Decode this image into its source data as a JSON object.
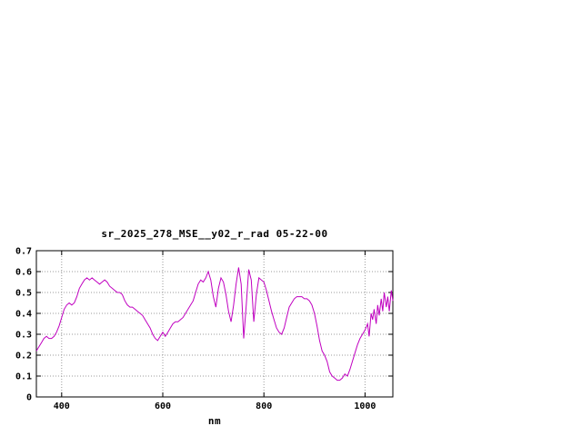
{
  "chart_data": {
    "type": "line",
    "title": "sr_2025_278_MSE__y02_r_rad 05-22-00",
    "xlabel": "nm",
    "ylabel": "",
    "xlim": [
      350,
      1055
    ],
    "ylim": [
      0,
      0.7
    ],
    "grid": true,
    "legend": "none",
    "x_tick_labels": [
      "400",
      "600",
      "800",
      "1000"
    ],
    "y_tick_labels": [
      "0",
      "0.1",
      "0.2",
      "0.3",
      "0.4",
      "0.5",
      "0.6",
      "0.7"
    ],
    "line_color": "#c000c0",
    "grid_color": "#9b9b9b",
    "axis_color": "#000000",
    "series": [
      {
        "name": "sr_2025_278_MSE__y02_r_rad 05-22-00",
        "x": [
          350,
          355,
          360,
          365,
          370,
          375,
          380,
          385,
          390,
          395,
          400,
          405,
          410,
          415,
          420,
          425,
          430,
          435,
          440,
          445,
          450,
          455,
          460,
          465,
          470,
          475,
          480,
          485,
          490,
          495,
          500,
          505,
          510,
          515,
          520,
          525,
          530,
          535,
          540,
          545,
          550,
          555,
          560,
          565,
          570,
          575,
          580,
          585,
          590,
          595,
          600,
          605,
          610,
          615,
          620,
          625,
          630,
          635,
          640,
          645,
          650,
          655,
          660,
          665,
          670,
          675,
          680,
          685,
          690,
          695,
          700,
          705,
          710,
          715,
          720,
          725,
          730,
          735,
          740,
          745,
          750,
          755,
          760,
          765,
          770,
          775,
          780,
          785,
          790,
          795,
          800,
          805,
          810,
          815,
          820,
          825,
          830,
          835,
          840,
          845,
          850,
          855,
          860,
          865,
          870,
          875,
          880,
          885,
          890,
          895,
          900,
          905,
          910,
          915,
          920,
          925,
          930,
          935,
          940,
          945,
          950,
          955,
          960,
          965,
          970,
          975,
          980,
          985,
          990,
          995,
          1000,
          1005,
          1008,
          1012,
          1015,
          1018,
          1022,
          1025,
          1028,
          1032,
          1035,
          1038,
          1042,
          1045,
          1048,
          1052,
          1055
        ],
        "y": [
          0.22,
          0.24,
          0.26,
          0.28,
          0.29,
          0.28,
          0.28,
          0.29,
          0.31,
          0.34,
          0.38,
          0.42,
          0.44,
          0.45,
          0.44,
          0.45,
          0.48,
          0.52,
          0.54,
          0.56,
          0.57,
          0.56,
          0.57,
          0.56,
          0.55,
          0.54,
          0.55,
          0.56,
          0.55,
          0.53,
          0.52,
          0.51,
          0.5,
          0.5,
          0.49,
          0.46,
          0.44,
          0.43,
          0.43,
          0.42,
          0.41,
          0.4,
          0.39,
          0.37,
          0.35,
          0.33,
          0.3,
          0.28,
          0.27,
          0.29,
          0.31,
          0.29,
          0.31,
          0.33,
          0.35,
          0.36,
          0.36,
          0.37,
          0.38,
          0.4,
          0.42,
          0.44,
          0.46,
          0.5,
          0.54,
          0.56,
          0.55,
          0.57,
          0.6,
          0.56,
          0.48,
          0.43,
          0.52,
          0.57,
          0.55,
          0.49,
          0.41,
          0.36,
          0.44,
          0.54,
          0.62,
          0.54,
          0.28,
          0.44,
          0.61,
          0.56,
          0.36,
          0.49,
          0.57,
          0.56,
          0.55,
          0.51,
          0.46,
          0.41,
          0.37,
          0.33,
          0.31,
          0.3,
          0.33,
          0.38,
          0.43,
          0.45,
          0.47,
          0.48,
          0.48,
          0.48,
          0.47,
          0.47,
          0.46,
          0.44,
          0.4,
          0.34,
          0.27,
          0.22,
          0.2,
          0.17,
          0.12,
          0.1,
          0.09,
          0.08,
          0.08,
          0.09,
          0.11,
          0.1,
          0.13,
          0.17,
          0.21,
          0.25,
          0.28,
          0.3,
          0.32,
          0.35,
          0.29,
          0.4,
          0.37,
          0.42,
          0.35,
          0.44,
          0.39,
          0.47,
          0.41,
          0.5,
          0.43,
          0.48,
          0.41,
          0.51,
          0.46
        ]
      }
    ]
  }
}
